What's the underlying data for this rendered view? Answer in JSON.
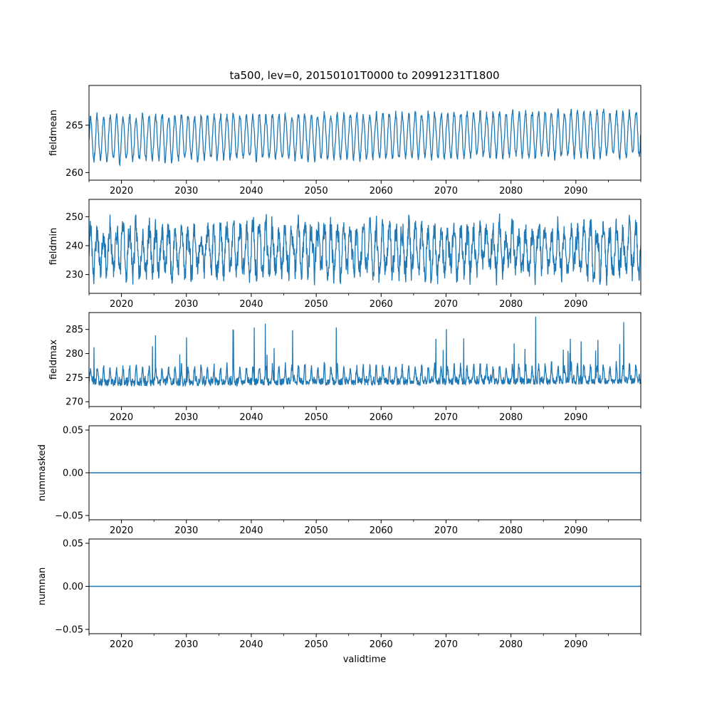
{
  "figure": {
    "title": "ta500, lev=0, 20150101T0000 to 20991231T1800",
    "xlabel": "validtime",
    "line_color": "#1f77b4"
  },
  "chart_data": [
    {
      "type": "line",
      "name": "fieldmean",
      "ylabel": "fieldmean",
      "xlim": [
        2015.0,
        2100.0
      ],
      "ylim": [
        259.2,
        269.2
      ],
      "x_ticks": [
        2020,
        2030,
        2040,
        2050,
        2060,
        2070,
        2080,
        2090
      ],
      "y_ticks": [
        260,
        265
      ],
      "y_tick_labels": [
        "260",
        "265"
      ],
      "signal": {
        "kind": "seasonal",
        "period_years": 1,
        "base": 263.6,
        "amplitude": 2.3,
        "trend_per_year": 0.006,
        "noise": 0.35,
        "seed": 11
      }
    },
    {
      "type": "line",
      "name": "fieldmin",
      "ylabel": "fieldmin",
      "xlim": [
        2015.0,
        2100.0
      ],
      "ylim": [
        223.5,
        256.0
      ],
      "x_ticks": [
        2020,
        2030,
        2040,
        2050,
        2060,
        2070,
        2080,
        2090
      ],
      "y_ticks": [
        230,
        240,
        250
      ],
      "y_tick_labels": [
        "230",
        "240",
        "250"
      ],
      "signal": {
        "kind": "seasonal",
        "period_years": 1,
        "base": 238.5,
        "amplitude": 7.0,
        "trend_per_year": 0.0,
        "noise": 4.2,
        "seed": 23
      }
    },
    {
      "type": "line",
      "name": "fieldmax",
      "ylabel": "fieldmax",
      "xlim": [
        2015.0,
        2100.0
      ],
      "ylim": [
        269.0,
        288.5
      ],
      "x_ticks": [
        2020,
        2030,
        2040,
        2050,
        2060,
        2070,
        2080,
        2090
      ],
      "y_ticks": [
        270,
        275,
        280,
        285
      ],
      "y_tick_labels": [
        "270",
        "275",
        "280",
        "285"
      ],
      "signal": {
        "kind": "spiky",
        "period_years": 1,
        "base": 273.2,
        "amplitude": 3.2,
        "trend_per_year": 0.005,
        "noise": 1.3,
        "seed": 37
      }
    },
    {
      "type": "line",
      "name": "nummasked",
      "ylabel": "nummasked",
      "xlim": [
        2015.0,
        2100.0
      ],
      "ylim": [
        -0.055,
        0.055
      ],
      "x_ticks": [
        2020,
        2030,
        2040,
        2050,
        2060,
        2070,
        2080,
        2090
      ],
      "y_ticks": [
        -0.05,
        0.0,
        0.05
      ],
      "y_tick_labels": [
        "−0.05",
        "0.00",
        "0.05"
      ],
      "signal": {
        "kind": "constant",
        "value": 0.0
      }
    },
    {
      "type": "line",
      "name": "numnan",
      "ylabel": "numnan",
      "xlim": [
        2015.0,
        2100.0
      ],
      "ylim": [
        -0.055,
        0.055
      ],
      "x_ticks": [
        2020,
        2030,
        2040,
        2050,
        2060,
        2070,
        2080,
        2090
      ],
      "y_ticks": [
        -0.05,
        0.0,
        0.05
      ],
      "y_tick_labels": [
        "−0.05",
        "0.00",
        "0.05"
      ],
      "signal": {
        "kind": "constant",
        "value": 0.0
      }
    }
  ]
}
